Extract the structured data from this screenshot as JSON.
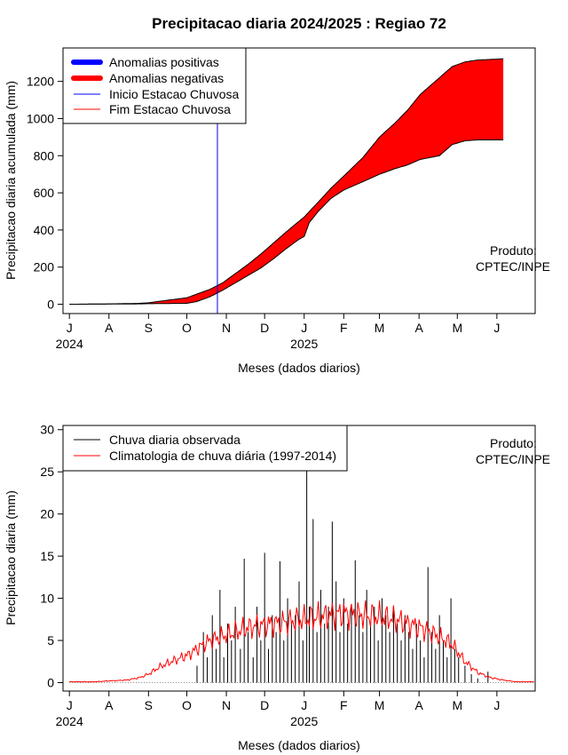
{
  "colors": {
    "positive": "#0000ff",
    "negative": "#ff0000",
    "observed": "#000000",
    "climatology": "#ff0000",
    "onset_line": "#0000ff",
    "end_line": "#ff0000"
  },
  "chart_data": [
    {
      "type": "area",
      "title": "Precipitacao diaria 2024/2025 : Regiao 72",
      "xlabel": "Meses (dados diarios)",
      "ylabel": "Precipitacao diaria acumulada (mm)",
      "xlim_days": [
        -5,
        365
      ],
      "ylim": [
        -50,
        1380
      ],
      "yticks": [
        0,
        200,
        400,
        600,
        800,
        1000,
        1200
      ],
      "month_ticks": [
        {
          "day": 0,
          "label": "J"
        },
        {
          "day": 31,
          "label": "A"
        },
        {
          "day": 62,
          "label": "S"
        },
        {
          "day": 92,
          "label": "O"
        },
        {
          "day": 123,
          "label": "N"
        },
        {
          "day": 153,
          "label": "D"
        },
        {
          "day": 184,
          "label": "J"
        },
        {
          "day": 215,
          "label": "F"
        },
        {
          "day": 243,
          "label": "M"
        },
        {
          "day": 274,
          "label": "A"
        },
        {
          "day": 304,
          "label": "M"
        },
        {
          "day": 335,
          "label": "J"
        }
      ],
      "year_labels": [
        {
          "day": 0,
          "label": "2024"
        },
        {
          "day": 184,
          "label": "2025"
        }
      ],
      "legend": {
        "placement": "top-left",
        "entries": [
          {
            "label": "Anomalias positivas",
            "color": "#0000ff",
            "style": "thick"
          },
          {
            "label": "Anomalias negativas",
            "color": "#ff0000",
            "style": "thick"
          },
          {
            "label": "Inicio Estacao Chuvosa",
            "color": "#0000ff",
            "style": "thin"
          },
          {
            "label": "Fim Estacao Chuvosa",
            "color": "#ff0000",
            "style": "thin"
          }
        ]
      },
      "onset_day": 116,
      "credit": [
        "Produto:",
        "CPTEC/INPE"
      ],
      "series": [
        {
          "name": "Climatologia acumulada",
          "x": [
            0,
            31,
            55,
            62,
            75,
            92,
            100,
            110,
            120,
            130,
            140,
            150,
            160,
            170,
            184,
            195,
            205,
            215,
            230,
            243,
            255,
            265,
            275,
            290,
            300,
            310,
            320,
            335,
            340
          ],
          "values": [
            0,
            2,
            5,
            8,
            20,
            35,
            55,
            80,
            115,
            165,
            215,
            270,
            330,
            390,
            470,
            550,
            625,
            690,
            790,
            900,
            975,
            1045,
            1130,
            1220,
            1280,
            1305,
            1315,
            1320,
            1322
          ]
        },
        {
          "name": "Chuva acumulada observada",
          "x": [
            0,
            31,
            55,
            62,
            75,
            92,
            100,
            110,
            120,
            130,
            140,
            150,
            160,
            170,
            180,
            184,
            188,
            195,
            205,
            215,
            230,
            243,
            255,
            265,
            275,
            290,
            300,
            310,
            320,
            335,
            340
          ],
          "values": [
            0,
            1,
            2,
            3,
            4,
            5,
            15,
            40,
            75,
            115,
            155,
            195,
            245,
            300,
            350,
            365,
            440,
            500,
            570,
            615,
            660,
            700,
            730,
            750,
            780,
            800,
            860,
            880,
            885,
            885,
            885
          ]
        }
      ]
    },
    {
      "type": "bar",
      "xlabel": "Meses (dados diarios)",
      "ylabel": "Precipitacao diaria (mm)",
      "xlim_days": [
        -5,
        365
      ],
      "ylim": [
        -1,
        30.5
      ],
      "yticks": [
        0,
        5,
        10,
        15,
        20,
        25,
        30
      ],
      "month_ticks": [
        {
          "day": 0,
          "label": "J"
        },
        {
          "day": 31,
          "label": "A"
        },
        {
          "day": 62,
          "label": "S"
        },
        {
          "day": 92,
          "label": "O"
        },
        {
          "day": 123,
          "label": "N"
        },
        {
          "day": 153,
          "label": "D"
        },
        {
          "day": 184,
          "label": "J"
        },
        {
          "day": 215,
          "label": "F"
        },
        {
          "day": 243,
          "label": "M"
        },
        {
          "day": 274,
          "label": "A"
        },
        {
          "day": 304,
          "label": "M"
        },
        {
          "day": 335,
          "label": "J"
        }
      ],
      "year_labels": [
        {
          "day": 0,
          "label": "2024"
        },
        {
          "day": 184,
          "label": "2025"
        }
      ],
      "legend": {
        "placement": "top-left",
        "entries": [
          {
            "label": "Chuva diaria observada",
            "color": "#000000"
          },
          {
            "label": "Climatologia de chuva diária (1997-2014)",
            "color": "#ff0000"
          }
        ]
      },
      "credit": [
        "Produto:",
        "CPTEC/INPE"
      ],
      "series": [
        {
          "name": "Chuva diaria observada",
          "x": [
            100,
            105,
            108,
            112,
            115,
            118,
            121,
            124,
            127,
            130,
            134,
            137,
            140,
            144,
            147,
            150,
            153,
            156,
            159,
            162,
            165,
            168,
            171,
            174,
            177,
            180,
            183,
            186,
            188,
            191,
            194,
            197,
            200,
            203,
            206,
            209,
            212,
            215,
            218,
            221,
            224,
            227,
            230,
            233,
            236,
            239,
            242,
            245,
            248,
            251,
            254,
            257,
            260,
            263,
            266,
            269,
            272,
            275,
            278,
            281,
            284,
            287,
            290,
            293,
            296,
            299,
            302,
            305,
            310,
            315,
            320,
            328
          ],
          "values": [
            2,
            6,
            3,
            8,
            4,
            11,
            3,
            7,
            5,
            9,
            4,
            14.7,
            6,
            3,
            9,
            5,
            15.4,
            4,
            8,
            6,
            14.4,
            5,
            10,
            7,
            8,
            12,
            5,
            27.5,
            9,
            19.4,
            6,
            11,
            7,
            9,
            19.1,
            12,
            6,
            10,
            7,
            9,
            14.5,
            8,
            6,
            11,
            7,
            9,
            5,
            10,
            8,
            6,
            9,
            7,
            5,
            8,
            6,
            4,
            7,
            5,
            3,
            13.7,
            6,
            4,
            8,
            5,
            3,
            10,
            4,
            3,
            2,
            1,
            0.5,
            1.3
          ]
        },
        {
          "name": "Climatologia de chuva diária (1997-2014)",
          "x": [
            0,
            20,
            31,
            45,
            55,
            62,
            70,
            80,
            92,
            100,
            110,
            120,
            130,
            140,
            150,
            160,
            170,
            184,
            195,
            205,
            215,
            230,
            243,
            255,
            265,
            275,
            285,
            295,
            300,
            305,
            310,
            320,
            330,
            340,
            350,
            365
          ],
          "values": [
            0.1,
            0.1,
            0.2,
            0.3,
            0.6,
            1.0,
            1.8,
            2.5,
            3.2,
            4.0,
            5.0,
            5.5,
            6.0,
            6.5,
            6.8,
            7.0,
            7.2,
            7.5,
            7.8,
            8.0,
            8.2,
            8.0,
            7.8,
            7.5,
            7.0,
            6.5,
            5.8,
            5.0,
            4.5,
            3.5,
            2.5,
            1.2,
            0.6,
            0.3,
            0.1,
            0.1
          ]
        }
      ]
    }
  ]
}
